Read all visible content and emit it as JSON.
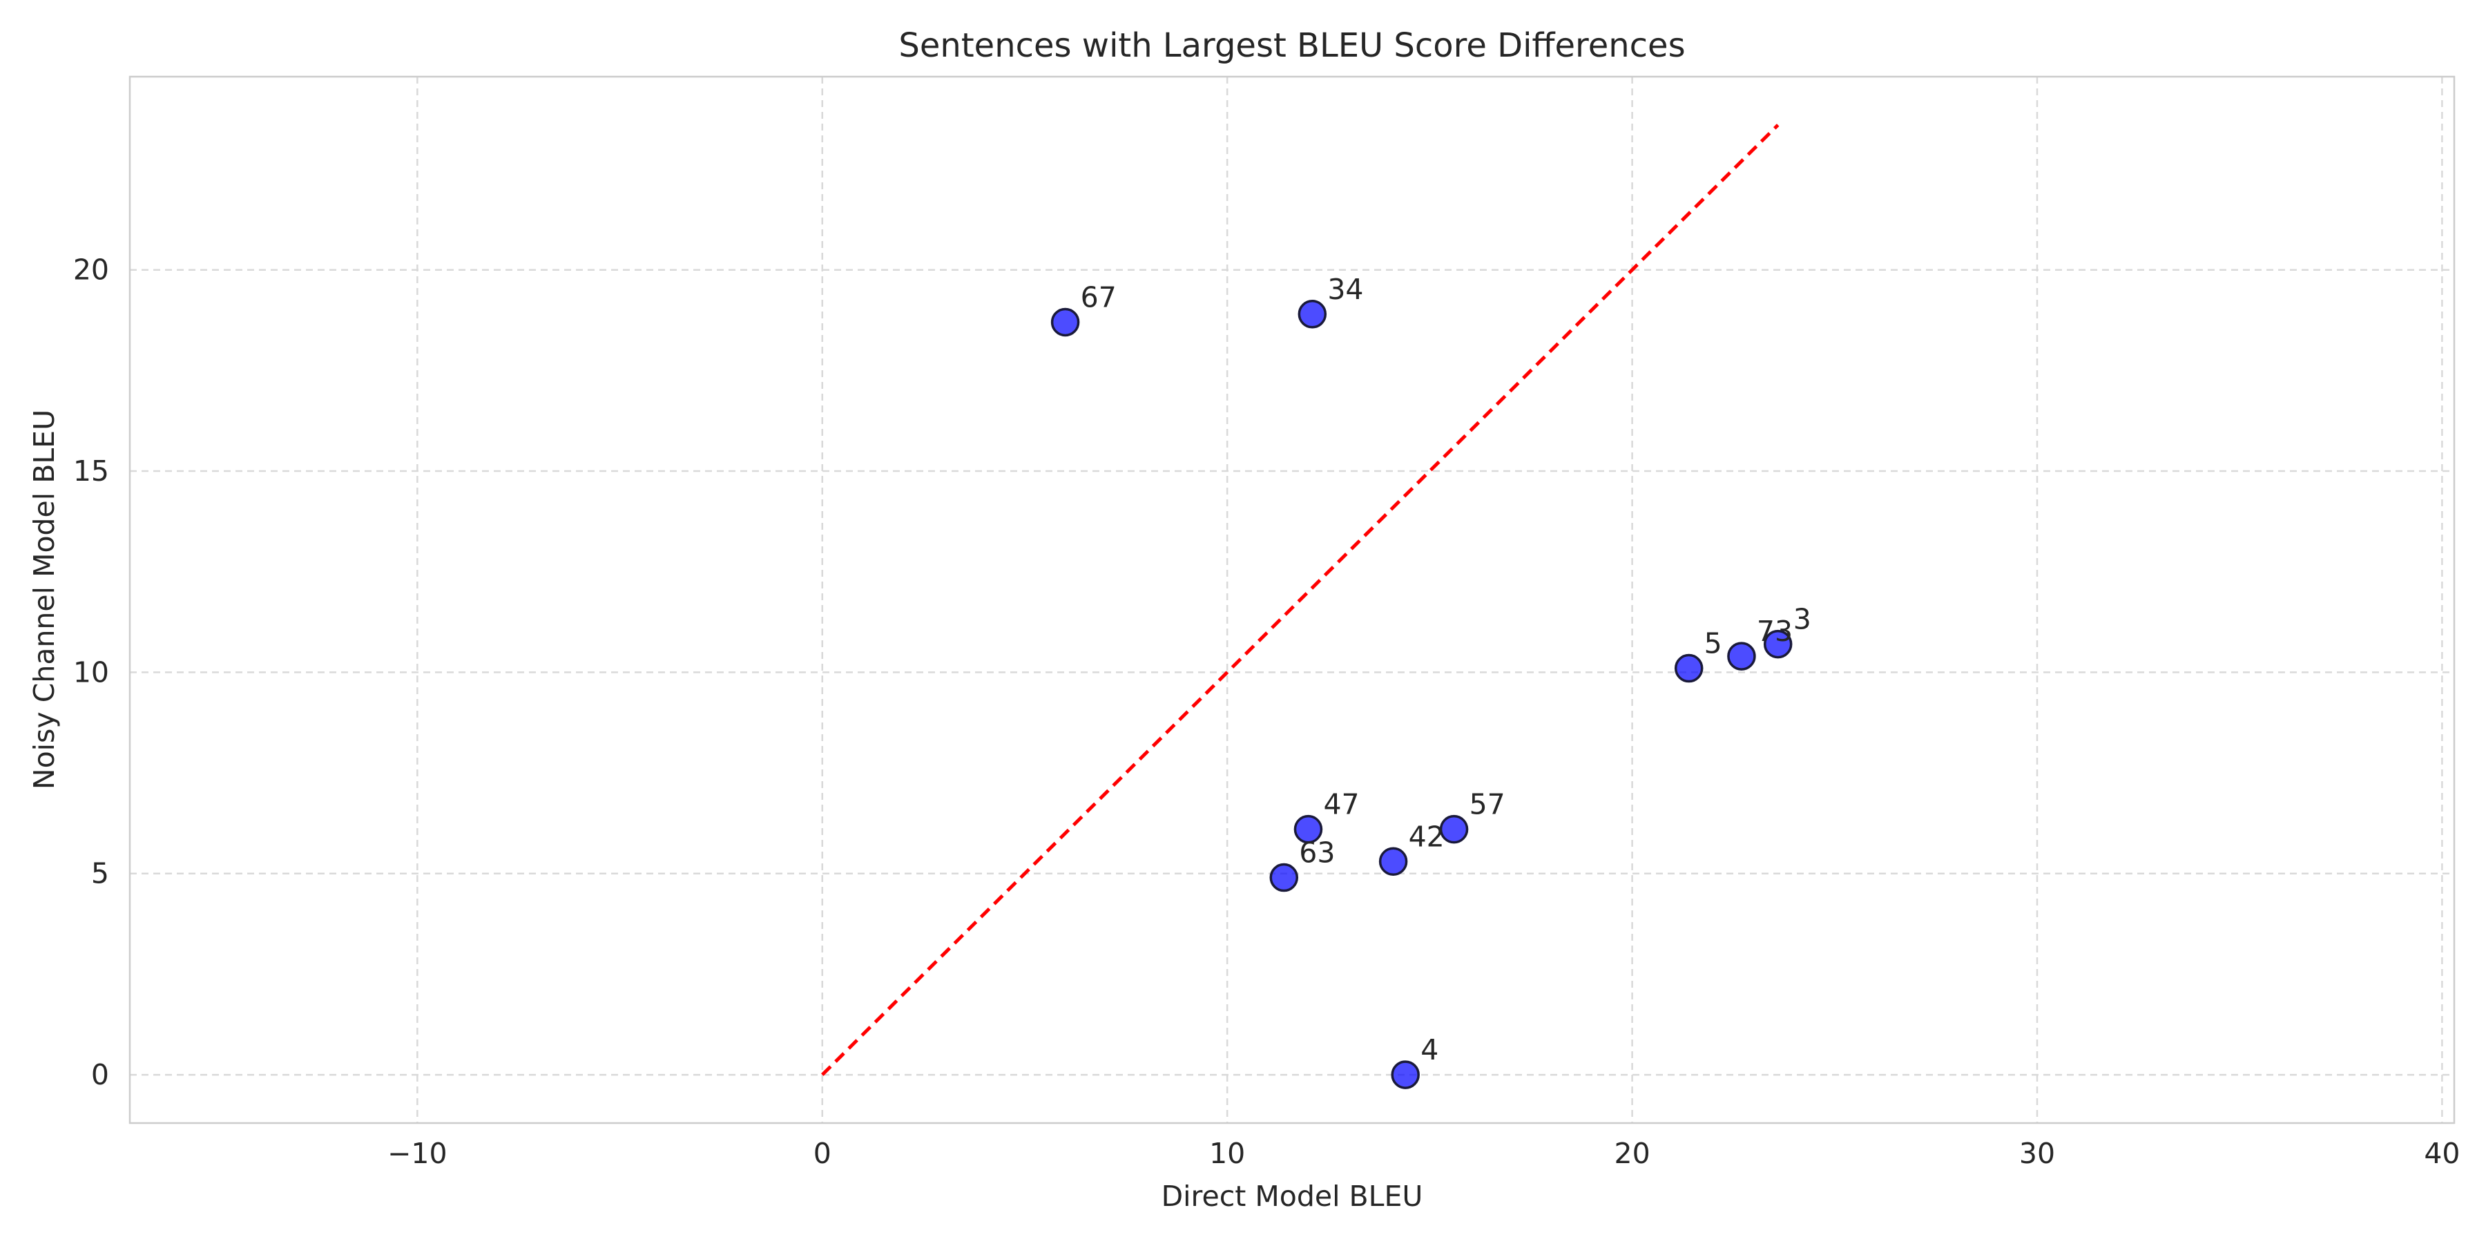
{
  "chart_data": {
    "type": "scatter",
    "title": "Sentences with Largest BLEU Score Differences",
    "xlabel": "Direct Model BLEU",
    "ylabel": "Noisy Channel Model BLEU",
    "xlim": [
      -17.1,
      40.3
    ],
    "ylim": [
      -1.2,
      24.8
    ],
    "x_ticks": [
      -10,
      0,
      10,
      20,
      30,
      40
    ],
    "y_ticks": [
      0,
      5,
      10,
      15,
      20
    ],
    "grid": true,
    "grid_style": "dashed",
    "points": [
      {
        "label": "67",
        "x": 6.0,
        "y": 18.7
      },
      {
        "label": "34",
        "x": 12.1,
        "y": 18.9
      },
      {
        "label": "5",
        "x": 21.4,
        "y": 10.1
      },
      {
        "label": "73",
        "x": 22.7,
        "y": 10.4
      },
      {
        "label": "3",
        "x": 23.6,
        "y": 10.7
      },
      {
        "label": "47",
        "x": 12.0,
        "y": 6.1
      },
      {
        "label": "57",
        "x": 15.6,
        "y": 6.1
      },
      {
        "label": "42",
        "x": 14.1,
        "y": 5.3
      },
      {
        "label": "63",
        "x": 11.4,
        "y": 4.9
      },
      {
        "label": "4",
        "x": 14.4,
        "y": 0.0
      }
    ],
    "reference_line": {
      "x": [
        0,
        23.6
      ],
      "y": [
        0,
        23.6
      ],
      "color": "#ff0000",
      "style": "dashed"
    },
    "marker_color": "#0000ff",
    "marker_edge_color": "#1a1a3a"
  }
}
